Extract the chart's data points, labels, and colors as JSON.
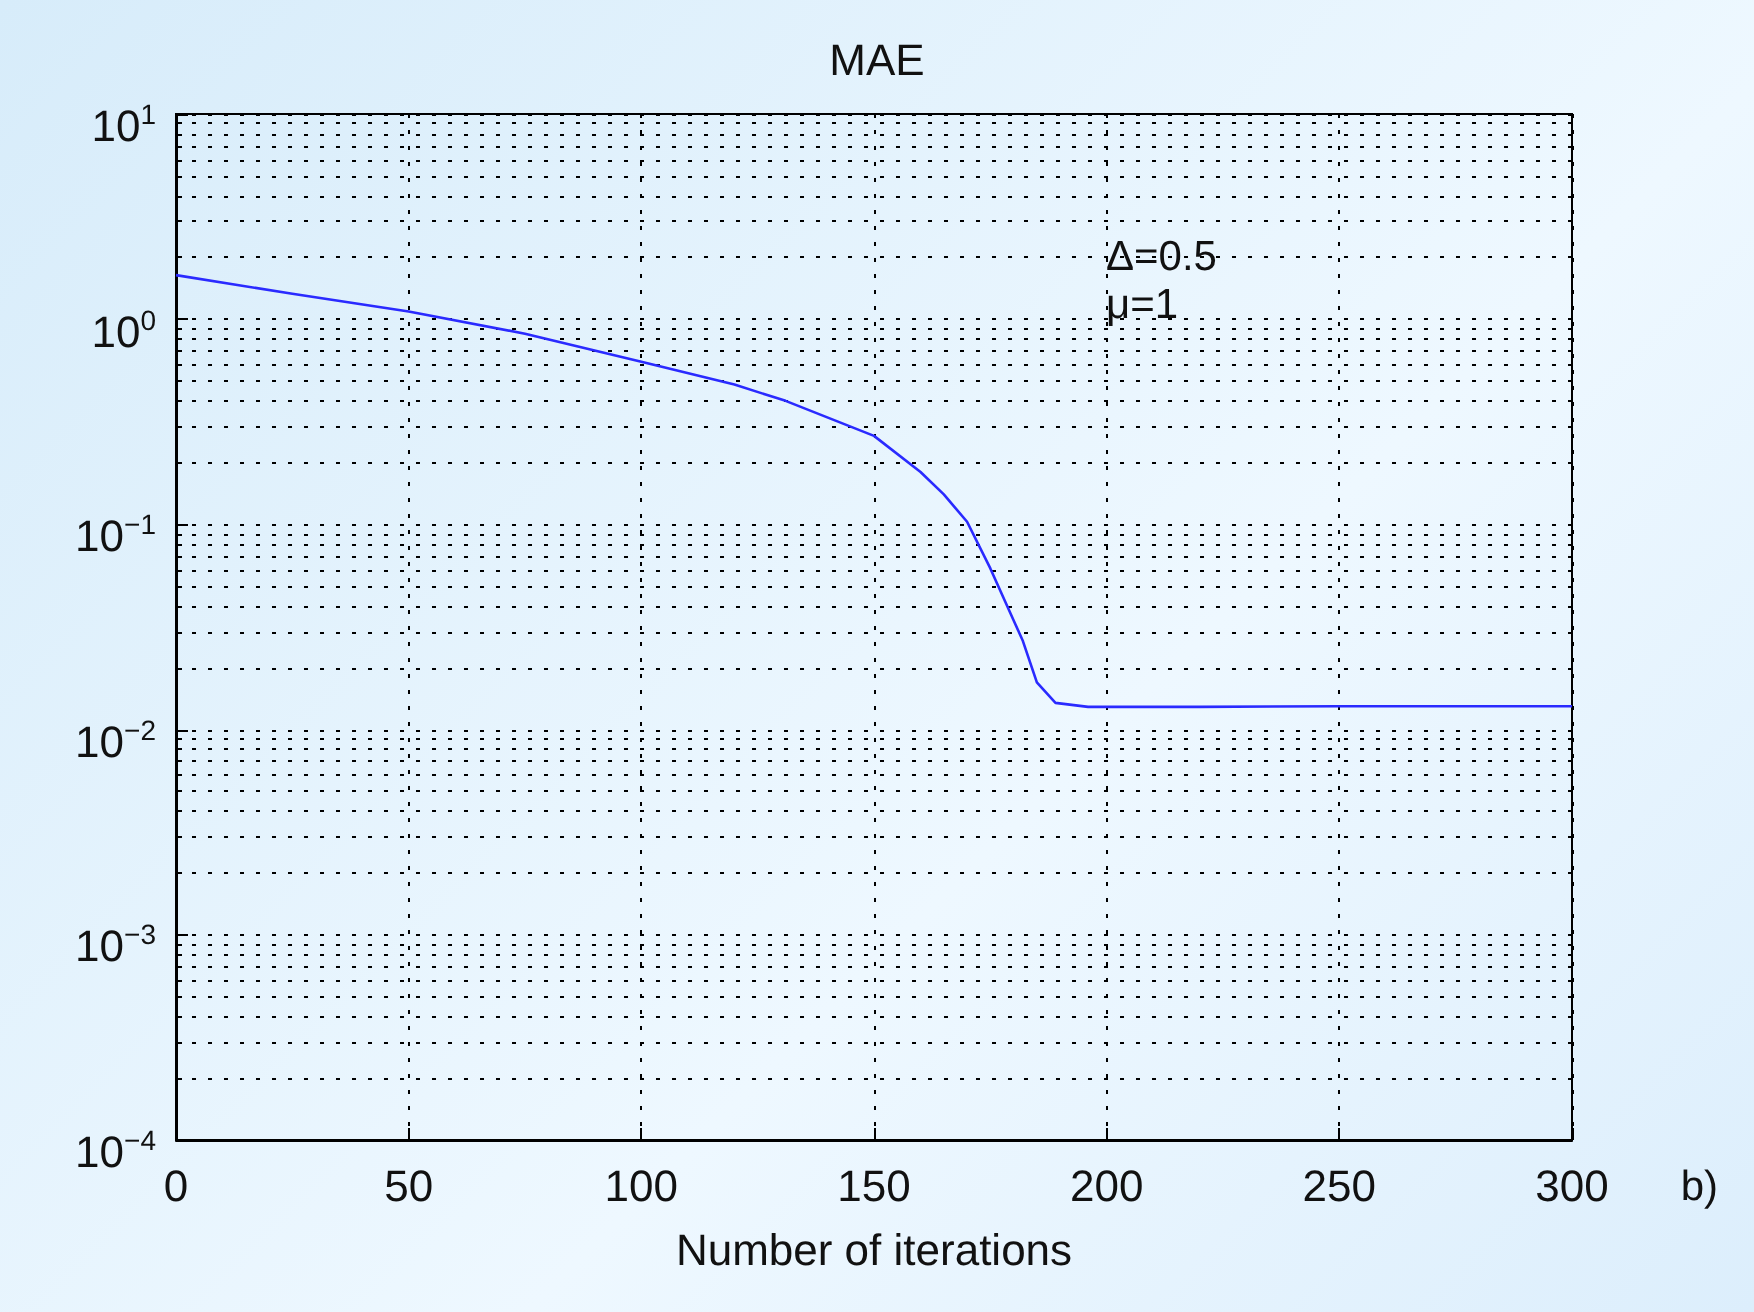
{
  "chart_data": {
    "type": "line",
    "title": "MAE",
    "xlabel": "Number of iterations",
    "x": [
      0,
      25,
      50,
      75,
      100,
      120,
      131,
      150,
      160,
      165,
      170,
      175,
      182,
      185,
      189,
      196,
      220,
      250,
      300
    ],
    "series": [
      {
        "color": "#2a2aff",
        "values": [
          1.64,
          1.33,
          1.09,
          0.85,
          0.62,
          0.48,
          0.4,
          0.27,
          0.18,
          0.14,
          0.103,
          0.061,
          0.027,
          0.017,
          0.0135,
          0.0129,
          0.0129,
          0.013,
          0.013
        ]
      }
    ],
    "log": "y",
    "xlim": [
      0,
      300
    ],
    "xticks": [
      0,
      50,
      100,
      150,
      200,
      250,
      300
    ],
    "ylim": [
      0.0001,
      10
    ],
    "yticks": [
      {
        "value": 0.0001,
        "label": "10$^{−4}$"
      },
      {
        "value": 0.001,
        "label": "10$^{−3}$"
      },
      {
        "value": 0.01,
        "label": "10$^{−2}$"
      },
      {
        "value": 0.1,
        "label": "10$^{−1}$"
      },
      {
        "value": 1,
        "label": "10$^{0}$"
      },
      {
        "value": 10,
        "label": "10$^{1}$"
      }
    ],
    "grid": true,
    "marker": "none",
    "line_style": "solid",
    "annotations": [
      "Δ=0.5",
      "μ=1",
      "b)"
    ]
  }
}
